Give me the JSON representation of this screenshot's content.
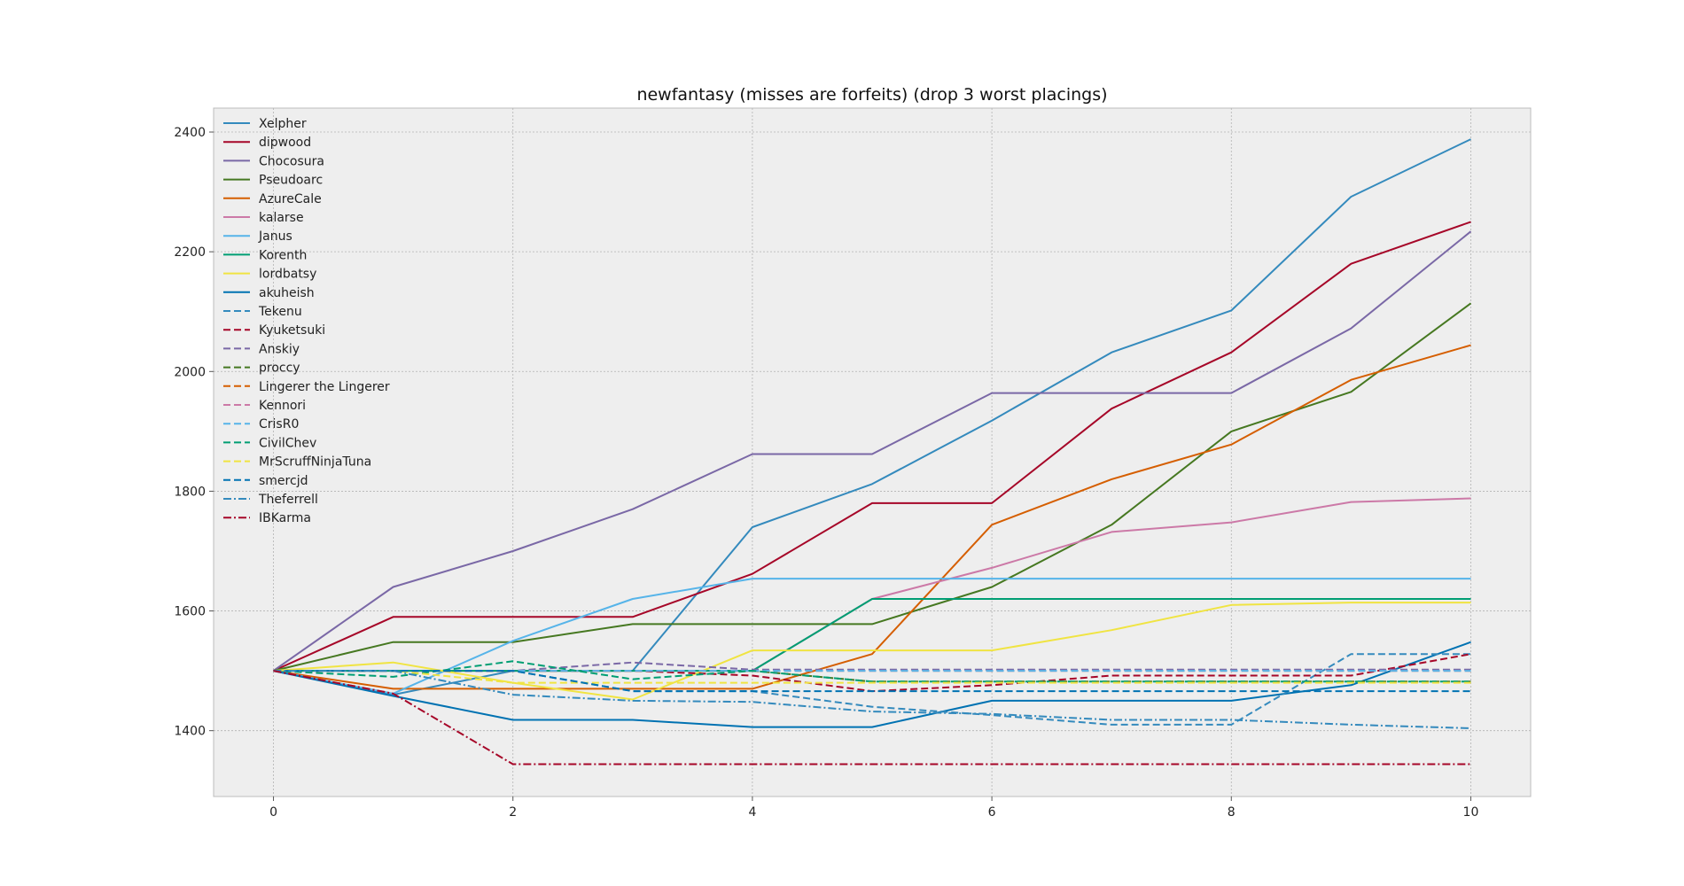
{
  "chart_data": {
    "type": "line",
    "title": "newfantasy (misses are forfeits) (drop 3 worst placings)",
    "xlabel": "",
    "ylabel": "",
    "xlim": [
      -0.5,
      10.5
    ],
    "ylim": [
      1290,
      2440
    ],
    "xticks": [
      0,
      2,
      4,
      6,
      8,
      10
    ],
    "yticks": [
      1400,
      1600,
      1800,
      2000,
      2200,
      2400
    ],
    "grid": true,
    "legend_position": "top-left",
    "x": [
      0,
      1,
      2,
      3,
      4,
      5,
      6,
      7,
      8,
      9,
      10
    ],
    "series": [
      {
        "name": "Xelpher",
        "color": "#348abd",
        "style": "solid",
        "values": [
          1500,
          1460,
          1500,
          1500,
          1740,
          1812,
          1918,
          2032,
          2102,
          2292,
          2388
        ]
      },
      {
        "name": "dipwood",
        "color": "#a60628",
        "style": "solid",
        "values": [
          1500,
          1590,
          1590,
          1590,
          1662,
          1780,
          1780,
          1938,
          2032,
          2180,
          2250
        ]
      },
      {
        "name": "Chocosura",
        "color": "#7a68a6",
        "style": "solid",
        "values": [
          1500,
          1640,
          1700,
          1770,
          1862,
          1862,
          1964,
          1964,
          1964,
          2072,
          2234
        ]
      },
      {
        "name": "Pseudoarc",
        "color": "#467821",
        "style": "solid",
        "values": [
          1500,
          1548,
          1548,
          1578,
          1578,
          1578,
          1640,
          1744,
          1900,
          1966,
          2114
        ]
      },
      {
        "name": "AzureCale",
        "color": "#d55e00",
        "style": "solid",
        "values": [
          1500,
          1470,
          1470,
          1470,
          1470,
          1528,
          1744,
          1820,
          1878,
          1986,
          2044
        ]
      },
      {
        "name": "kalarse",
        "color": "#cc79a7",
        "style": "solid",
        "values": [
          1500,
          1500,
          1500,
          1500,
          1500,
          1620,
          1672,
          1732,
          1748,
          1782,
          1788
        ]
      },
      {
        "name": "Janus",
        "color": "#56b4e9",
        "style": "solid",
        "values": [
          1500,
          1462,
          1550,
          1620,
          1654,
          1654,
          1654,
          1654,
          1654,
          1654,
          1654
        ]
      },
      {
        "name": "Korenth",
        "color": "#009e73",
        "style": "solid",
        "values": [
          1500,
          1500,
          1500,
          1500,
          1500,
          1620,
          1620,
          1620,
          1620,
          1620,
          1620
        ]
      },
      {
        "name": "lordbatsy",
        "color": "#f0e442",
        "style": "solid",
        "values": [
          1500,
          1514,
          1480,
          1452,
          1534,
          1534,
          1534,
          1568,
          1610,
          1614,
          1614
        ]
      },
      {
        "name": "akuheish",
        "color": "#0072b2",
        "style": "solid",
        "values": [
          1500,
          1458,
          1418,
          1418,
          1406,
          1406,
          1450,
          1450,
          1450,
          1476,
          1548
        ]
      },
      {
        "name": "Tekenu",
        "color": "#348abd",
        "style": "dashed",
        "values": [
          1500,
          1500,
          1500,
          1466,
          1466,
          1440,
          1426,
          1410,
          1410,
          1528,
          1528
        ]
      },
      {
        "name": "Kyuketsuki",
        "color": "#a60628",
        "style": "dashed",
        "values": [
          1500,
          1500,
          1500,
          1500,
          1492,
          1466,
          1476,
          1492,
          1492,
          1492,
          1528
        ]
      },
      {
        "name": "Anskiy",
        "color": "#7a68a6",
        "style": "dashed",
        "values": [
          1500,
          1500,
          1500,
          1514,
          1502,
          1502,
          1502,
          1502,
          1502,
          1502,
          1502
        ]
      },
      {
        "name": "proccy",
        "color": "#467821",
        "style": "dashed",
        "values": [
          1500,
          1500,
          1500,
          1500,
          1500,
          1482,
          1482,
          1482,
          1482,
          1482,
          1482
        ]
      },
      {
        "name": "Lingerer the Lingerer",
        "color": "#d55e00",
        "style": "dashed",
        "values": [
          1500,
          1500,
          1500,
          1500,
          1500,
          1500,
          1500,
          1500,
          1500,
          1500,
          1500
        ]
      },
      {
        "name": "Kennori",
        "color": "#cc79a7",
        "style": "dashed",
        "values": [
          1500,
          1500,
          1500,
          1500,
          1500,
          1500,
          1500,
          1500,
          1500,
          1500,
          1500
        ]
      },
      {
        "name": "CrisR0",
        "color": "#56b4e9",
        "style": "dashed",
        "values": [
          1500,
          1500,
          1500,
          1500,
          1500,
          1500,
          1500,
          1500,
          1500,
          1500,
          1500
        ]
      },
      {
        "name": "CivilChev",
        "color": "#009e73",
        "style": "dashed",
        "values": [
          1500,
          1490,
          1516,
          1486,
          1500,
          1482,
          1482,
          1482,
          1482,
          1482,
          1482
        ]
      },
      {
        "name": "MrScruffNinjaTuna",
        "color": "#f0e442",
        "style": "dashed",
        "values": [
          1500,
          1500,
          1480,
          1480,
          1480,
          1480,
          1480,
          1480,
          1480,
          1480,
          1480
        ]
      },
      {
        "name": "smercjd",
        "color": "#0072b2",
        "style": "dashed",
        "values": [
          1500,
          1500,
          1500,
          1466,
          1466,
          1466,
          1466,
          1466,
          1466,
          1466,
          1466
        ]
      },
      {
        "name": "Theferrell",
        "color": "#348abd",
        "style": "dashdot",
        "values": [
          1500,
          1500,
          1460,
          1450,
          1448,
          1432,
          1428,
          1418,
          1418,
          1410,
          1404
        ]
      },
      {
        "name": "IBKarma",
        "color": "#a60628",
        "style": "dashdot",
        "values": [
          1500,
          1462,
          1344,
          1344,
          1344,
          1344,
          1344,
          1344,
          1344,
          1344,
          1344
        ]
      }
    ]
  }
}
